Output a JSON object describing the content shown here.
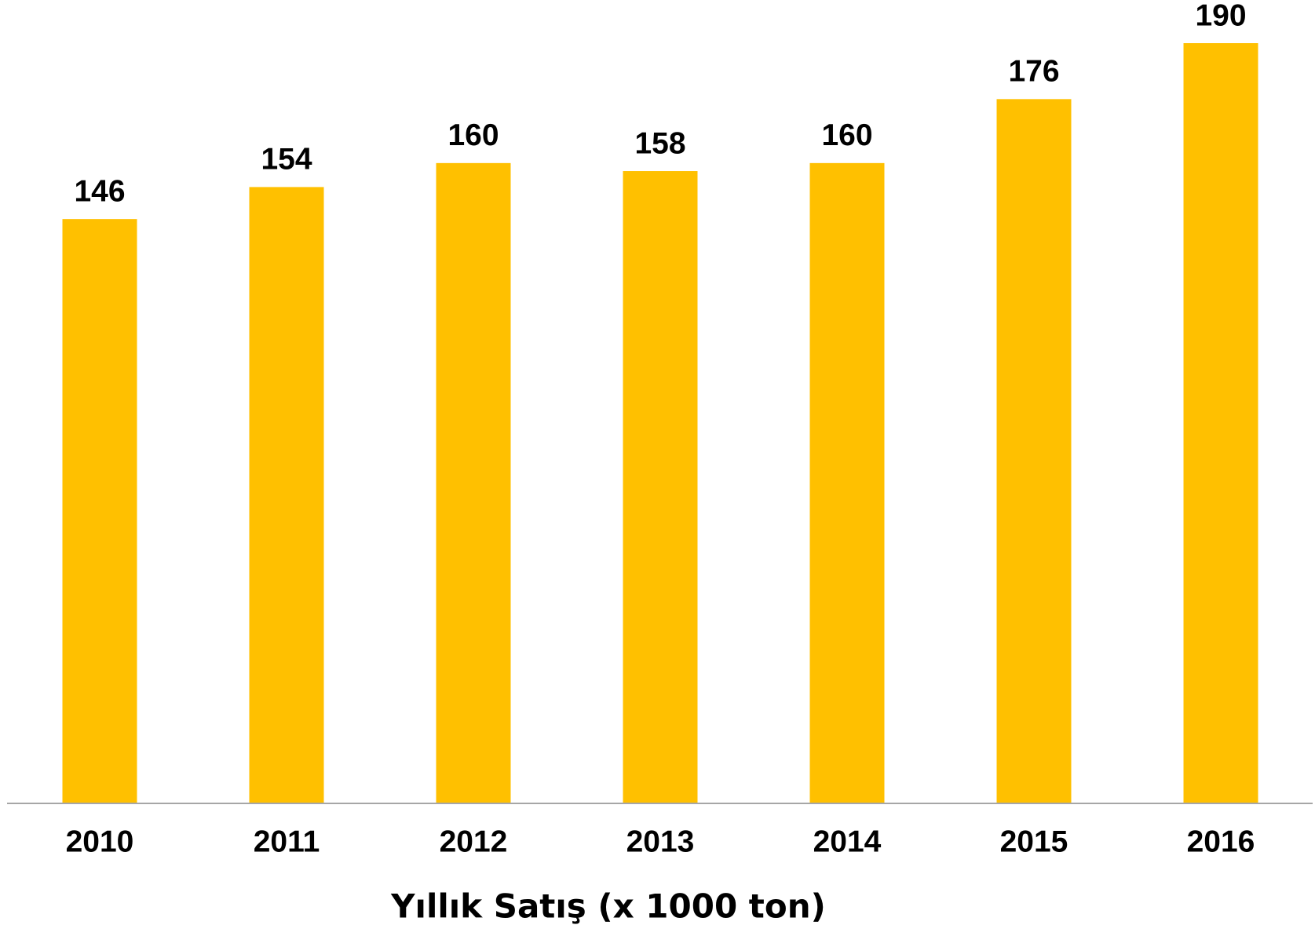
{
  "chart_data": {
    "type": "bar",
    "x_label": "Yıllık Satış (x 1000 ton)",
    "categories": [
      "2010",
      "2011",
      "2012",
      "2013",
      "2014",
      "2015",
      "2016"
    ],
    "values": [
      146,
      154,
      160,
      158,
      160,
      176,
      190
    ],
    "color": "#ffc000"
  }
}
